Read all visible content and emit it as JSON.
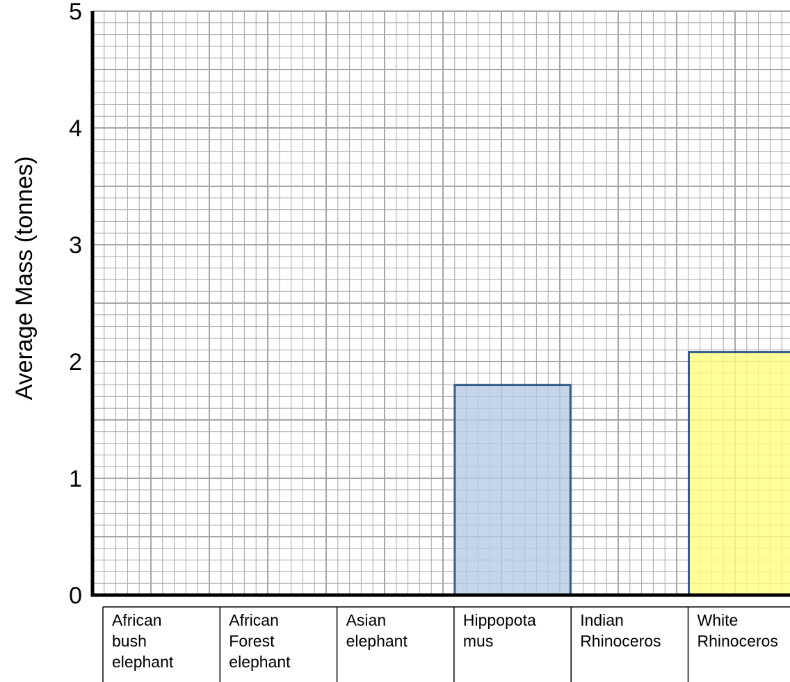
{
  "chart_data": {
    "type": "bar",
    "title": "",
    "xlabel": "",
    "ylabel": "Average Mass (tonnes)",
    "ylim": [
      0,
      5
    ],
    "yticks": [
      "0",
      "1",
      "2",
      "3",
      "4",
      "5"
    ],
    "grid": true,
    "categories": [
      [
        "African",
        "bush",
        "elephant"
      ],
      [
        "African",
        "Forest",
        "elephant"
      ],
      [
        "Asian",
        "elephant"
      ],
      [
        "Hippopota",
        "mus"
      ],
      [
        "Indian",
        "Rhinoceros"
      ],
      [
        "White",
        "Rhinoceros"
      ]
    ],
    "values": [
      null,
      null,
      null,
      1.8,
      null,
      2.08
    ],
    "bar_colors": [
      "",
      "",
      "",
      "#b8cce4",
      "",
      "#ffff80"
    ],
    "bar_edge_color": "#385d8a",
    "grid_color": "#a6a6a6"
  }
}
